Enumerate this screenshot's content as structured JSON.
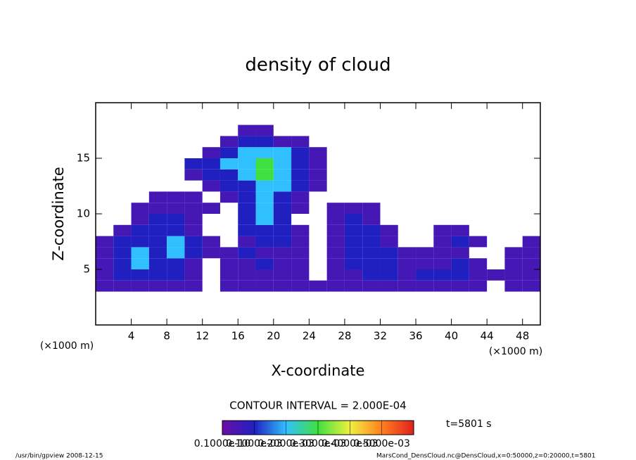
{
  "chart_data": {
    "type": "heatmap",
    "title": "density of cloud",
    "x_label": "X-coordinate",
    "y_label": "Z-coordinate",
    "x_unit": "(×1000 m)",
    "x_unit_right": "(×1000 m)",
    "xlim": [
      0,
      50
    ],
    "ylim": [
      0,
      20
    ],
    "xticks": [
      4,
      8,
      12,
      16,
      20,
      24,
      28,
      32,
      36,
      40,
      44,
      48
    ],
    "yticks": [
      5,
      10,
      15
    ],
    "x": [
      1,
      3,
      5,
      7,
      9,
      11,
      13,
      15,
      17,
      19,
      21,
      23,
      25,
      27,
      29,
      31,
      33,
      35,
      37,
      39,
      41,
      43,
      45,
      47,
      49
    ],
    "y": [
      3.5,
      4.5,
      5.5,
      6.5,
      7.5,
      8.5,
      9.5,
      10.5,
      11.5,
      12.5,
      13.5,
      14.5,
      15.5,
      16.5,
      17.5
    ],
    "z": [
      [
        5e-05,
        5e-05,
        5e-05,
        5e-05,
        5e-05,
        5e-05,
        0,
        5e-05,
        5e-05,
        5e-05,
        5e-05,
        5e-05,
        5e-05,
        5e-05,
        5e-05,
        5e-05,
        5e-05,
        5e-05,
        5e-05,
        5e-05,
        5e-05,
        5e-05,
        0,
        5e-05,
        5e-05
      ],
      [
        5e-05,
        0.0001,
        0.0001,
        0.0001,
        0.0001,
        5e-05,
        0,
        5e-05,
        5e-05,
        5e-05,
        5e-05,
        5e-05,
        0,
        5e-05,
        5e-05,
        0.0001,
        0.0001,
        5e-05,
        0.0001,
        0.0001,
        0.0001,
        5e-05,
        5e-05,
        5e-05,
        5e-05
      ],
      [
        5e-05,
        0.0001,
        0.0002,
        0.0001,
        0.0001,
        5e-05,
        0,
        5e-05,
        5e-05,
        0.0001,
        5e-05,
        5e-05,
        0,
        5e-05,
        0.0001,
        0.0001,
        0.0001,
        5e-05,
        5e-05,
        5e-05,
        0.0001,
        5e-05,
        0,
        5e-05,
        5e-05
      ],
      [
        5e-05,
        0.0001,
        0.0002,
        0.0001,
        0.0002,
        0.0001,
        5e-05,
        5e-05,
        0.0001,
        5e-05,
        5e-05,
        5e-05,
        0,
        5e-05,
        0.0001,
        0.0001,
        0.0001,
        5e-05,
        5e-05,
        5e-05,
        5e-05,
        0,
        0,
        5e-05,
        5e-05
      ],
      [
        5e-05,
        0.0001,
        0.0001,
        0.0001,
        0.0002,
        0.0001,
        5e-05,
        0,
        5e-05,
        0.0001,
        0.0001,
        5e-05,
        0,
        5e-05,
        0.0001,
        0.0001,
        5e-05,
        0,
        0,
        5e-05,
        0.0001,
        5e-05,
        0,
        0,
        5e-05
      ],
      [
        0,
        5e-05,
        0.0001,
        0.0001,
        0.0001,
        5e-05,
        0,
        0,
        0.0001,
        0.0001,
        0.0001,
        5e-05,
        0,
        5e-05,
        0.0001,
        0.0001,
        5e-05,
        0,
        0,
        5e-05,
        5e-05,
        0,
        0,
        0,
        0
      ],
      [
        0,
        0,
        5e-05,
        0.0001,
        0.0001,
        5e-05,
        0,
        0,
        0.0001,
        0.0002,
        0.0001,
        0,
        0,
        5e-05,
        0.0001,
        5e-05,
        0,
        0,
        0,
        0,
        0,
        0,
        0,
        0,
        0
      ],
      [
        0,
        0,
        5e-05,
        5e-05,
        5e-05,
        5e-05,
        5e-05,
        0,
        0.0001,
        0.0002,
        0.0001,
        5e-05,
        0,
        5e-05,
        5e-05,
        5e-05,
        0,
        0,
        0,
        0,
        0,
        0,
        0,
        0,
        0
      ],
      [
        0,
        0,
        0,
        5e-05,
        5e-05,
        5e-05,
        0,
        5e-05,
        0.0001,
        0.0002,
        0.0001,
        5e-05,
        0,
        0,
        0,
        0,
        0,
        0,
        0,
        0,
        0,
        0,
        0,
        0,
        0
      ],
      [
        0,
        0,
        0,
        0,
        0,
        0,
        5e-05,
        0.0001,
        0.0001,
        0.0002,
        0.0002,
        0.0001,
        5e-05,
        0,
        0,
        0,
        0,
        0,
        0,
        0,
        0,
        0,
        0,
        0,
        0
      ],
      [
        0,
        0,
        0,
        0,
        0,
        5e-05,
        0.0001,
        0.0001,
        0.0002,
        0.0003,
        0.0002,
        0.0001,
        5e-05,
        0,
        0,
        0,
        0,
        0,
        0,
        0,
        0,
        0,
        0,
        0,
        0
      ],
      [
        0,
        0,
        0,
        0,
        0,
        0.0001,
        0.0001,
        0.0002,
        0.0002,
        0.0003,
        0.0002,
        0.0001,
        5e-05,
        0,
        0,
        0,
        0,
        0,
        0,
        0,
        0,
        0,
        0,
        0,
        0
      ],
      [
        0,
        0,
        0,
        0,
        0,
        0,
        5e-05,
        0.0001,
        0.0002,
        0.0002,
        0.0002,
        0.0001,
        5e-05,
        0,
        0,
        0,
        0,
        0,
        0,
        0,
        0,
        0,
        0,
        0,
        0
      ],
      [
        0,
        0,
        0,
        0,
        0,
        0,
        0,
        5e-05,
        0.0001,
        0.0001,
        5e-05,
        5e-05,
        0,
        0,
        0,
        0,
        0,
        0,
        0,
        0,
        0,
        0,
        0,
        0,
        0
      ],
      [
        0,
        0,
        0,
        0,
        0,
        0,
        0,
        0,
        5e-05,
        5e-05,
        0,
        0,
        0,
        0,
        0,
        0,
        0,
        0,
        0,
        0,
        0,
        0,
        0,
        0,
        0
      ]
    ],
    "colors": [
      "#6a0da8",
      "#2020c0",
      "#30c0ff",
      "#40e040",
      "#f0f040",
      "#ff8020",
      "#e02020"
    ],
    "clim": [
      0,
      0.0006
    ],
    "colorbar_ticks": [
      {
        "value": 1e-11,
        "label": "0.1000e-10"
      },
      {
        "value": 0.0001,
        "label": "0.1000e-03"
      },
      {
        "value": 0.0002,
        "label": "0.2000e-03"
      },
      {
        "value": 0.0003,
        "label": "0.3000e-03"
      },
      {
        "value": 0.0004,
        "label": "0.4000e-03"
      },
      {
        "value": 0.0005,
        "label": "0.5000e-03"
      }
    ],
    "contour_interval": "CONTOUR INTERVAL = 2.000E-04",
    "time_label": "t=5801 s",
    "footer_left": "/usr/bin/gpview  2008-12-15",
    "footer_right": "MarsCond_DensCloud.nc@DensCloud,x=0:50000,z=0:20000,t=5801"
  }
}
